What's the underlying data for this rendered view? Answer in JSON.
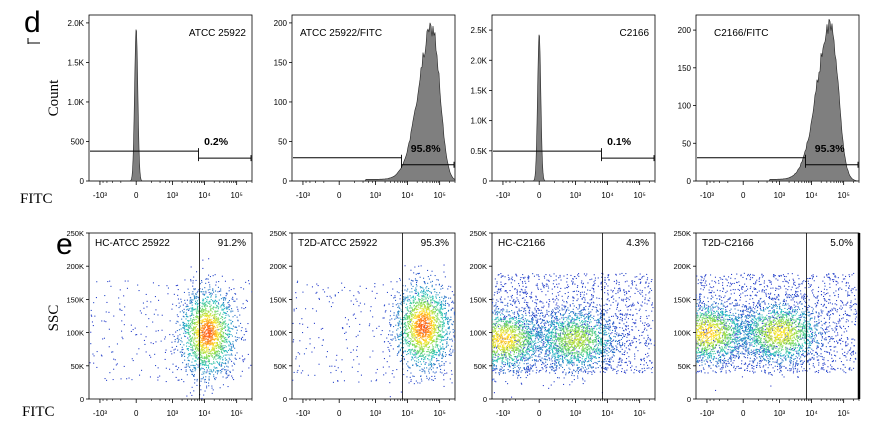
{
  "panels": {
    "d": "d",
    "e": "e"
  },
  "row_labels": {
    "hist_y": "Count",
    "scatter_y": "SSC",
    "hist_x": "FITC",
    "scatter_x": "FITC"
  },
  "colors": {
    "histogram_fill": "#7f7f7f",
    "density_low": "#2b3bcc",
    "density_mid": "#22c0c0",
    "density_high": "#ffe629",
    "density_peak": "#ff5a14"
  },
  "x_tick_labels": [
    "-10³",
    "0",
    "10³",
    "10⁴",
    "10⁵"
  ],
  "chart_data": [
    {
      "type": "histogram",
      "title": "ATCC 25922",
      "xlabel": "FITC",
      "ylabel": "Count",
      "x_scale": "biexponential",
      "x_ticks": [
        "-10³",
        "0",
        "10³",
        "10⁴",
        "10⁵"
      ],
      "ylim": [
        0,
        2100
      ],
      "y_ticks": [
        0,
        500,
        1000,
        1500,
        2000
      ],
      "y_tick_labels": [
        "0",
        "500",
        "1.0K",
        "1.5K",
        "2.0K"
      ],
      "gate_percent": "0.2%",
      "peak": {
        "x": 0,
        "count": 1930,
        "width": "narrow"
      }
    },
    {
      "type": "histogram",
      "title": "ATCC 25922/FITC",
      "xlabel": "FITC",
      "ylabel": "Count",
      "x_scale": "biexponential",
      "x_ticks": [
        "-10³",
        "0",
        "10³",
        "10⁴",
        "10⁵"
      ],
      "ylim": [
        0,
        210
      ],
      "y_ticks": [
        0,
        50,
        100,
        150,
        200
      ],
      "y_tick_labels": [
        "0",
        "50",
        "100",
        "150",
        "200"
      ],
      "gate_percent": "95.8%",
      "peak": {
        "x": 60000,
        "count": 192,
        "width": "broad"
      }
    },
    {
      "type": "histogram",
      "title": "C2166",
      "xlabel": "FITC",
      "ylabel": "Count",
      "x_scale": "biexponential",
      "x_ticks": [
        "-10³",
        "0",
        "10³",
        "10⁴",
        "10⁵"
      ],
      "ylim": [
        0,
        2750
      ],
      "y_ticks": [
        0,
        500,
        1000,
        1500,
        2000,
        2500
      ],
      "y_tick_labels": [
        "0",
        "0.5K",
        "1.0K",
        "1.5K",
        "2.0K",
        "2.5K"
      ],
      "gate_percent": "0.1%",
      "peak": {
        "x": 0,
        "count": 2440,
        "width": "narrow"
      }
    },
    {
      "type": "histogram",
      "title": "C2166/FITC",
      "xlabel": "FITC",
      "ylabel": "Count",
      "x_scale": "biexponential",
      "x_ticks": [
        "-10³",
        "0",
        "10³",
        "10⁴",
        "10⁵"
      ],
      "ylim": [
        0,
        220
      ],
      "y_ticks": [
        0,
        50,
        100,
        150,
        200
      ],
      "y_tick_labels": [
        "0",
        "50",
        "100",
        "150",
        "200"
      ],
      "gate_percent": "95.3%",
      "peak": {
        "x": 40000,
        "count": 206,
        "width": "broad"
      }
    },
    {
      "type": "scatter",
      "title": "HC-ATCC 25922",
      "xlabel": "FITC",
      "ylabel": "SSC",
      "x_scale": "biexponential",
      "x_ticks": [
        "-10³",
        "0",
        "10³",
        "10⁴",
        "10⁵"
      ],
      "ylim": [
        0,
        250000
      ],
      "y_ticks": [
        0,
        50000,
        100000,
        150000,
        200000,
        250000
      ],
      "y_tick_labels": [
        "0",
        "50K",
        "100K",
        "150K",
        "200K",
        "250K"
      ],
      "gate_percent": "91.2%",
      "gate_x": 7000,
      "density_clusters": [
        {
          "x": 12000,
          "y": 100000,
          "relative_density": 1.0
        }
      ]
    },
    {
      "type": "scatter",
      "title": "T2D-ATCC 25922",
      "xlabel": "FITC",
      "ylabel": "SSC",
      "x_scale": "biexponential",
      "x_ticks": [
        "-10³",
        "0",
        "10³",
        "10⁴",
        "10⁵"
      ],
      "ylim": [
        0,
        250000
      ],
      "y_ticks": [
        0,
        50000,
        100000,
        150000,
        200000,
        250000
      ],
      "y_tick_labels": [
        "0",
        "50K",
        "100K",
        "150K",
        "200K",
        "250K"
      ],
      "gate_percent": "95.3%",
      "gate_x": 7000,
      "density_clusters": [
        {
          "x": 30000,
          "y": 110000,
          "relative_density": 1.0
        }
      ]
    },
    {
      "type": "scatter",
      "title": "HC-C2166",
      "xlabel": "FITC",
      "ylabel": "SSC",
      "x_scale": "biexponential",
      "x_ticks": [
        "-10³",
        "0",
        "10³",
        "10⁴",
        "10⁵"
      ],
      "ylim": [
        0,
        250000
      ],
      "y_ticks": [
        0,
        50000,
        100000,
        150000,
        200000,
        250000
      ],
      "y_tick_labels": [
        "0",
        "50K",
        "100K",
        "150K",
        "200K",
        "250K"
      ],
      "gate_percent": "4.3%",
      "gate_x": 7000,
      "density_clusters": [
        {
          "x": -1000,
          "y": 90000,
          "relative_density": 0.85
        },
        {
          "x": 1000,
          "y": 90000,
          "relative_density": 0.7
        }
      ]
    },
    {
      "type": "scatter",
      "title": "T2D-C2166",
      "xlabel": "FITC",
      "ylabel": "SSC",
      "x_scale": "biexponential",
      "x_ticks": [
        "-10³",
        "0",
        "10³",
        "10⁴",
        "10⁵"
      ],
      "ylim": [
        0,
        250000
      ],
      "y_ticks": [
        0,
        50000,
        100000,
        150000,
        200000,
        250000
      ],
      "y_tick_labels": [
        "0",
        "50K",
        "100K",
        "150K",
        "200K",
        "250K"
      ],
      "gate_percent": "5.0%",
      "gate_x": 7000,
      "density_clusters": [
        {
          "x": -1000,
          "y": 100000,
          "relative_density": 0.85
        },
        {
          "x": 1000,
          "y": 100000,
          "relative_density": 0.8
        }
      ]
    }
  ]
}
